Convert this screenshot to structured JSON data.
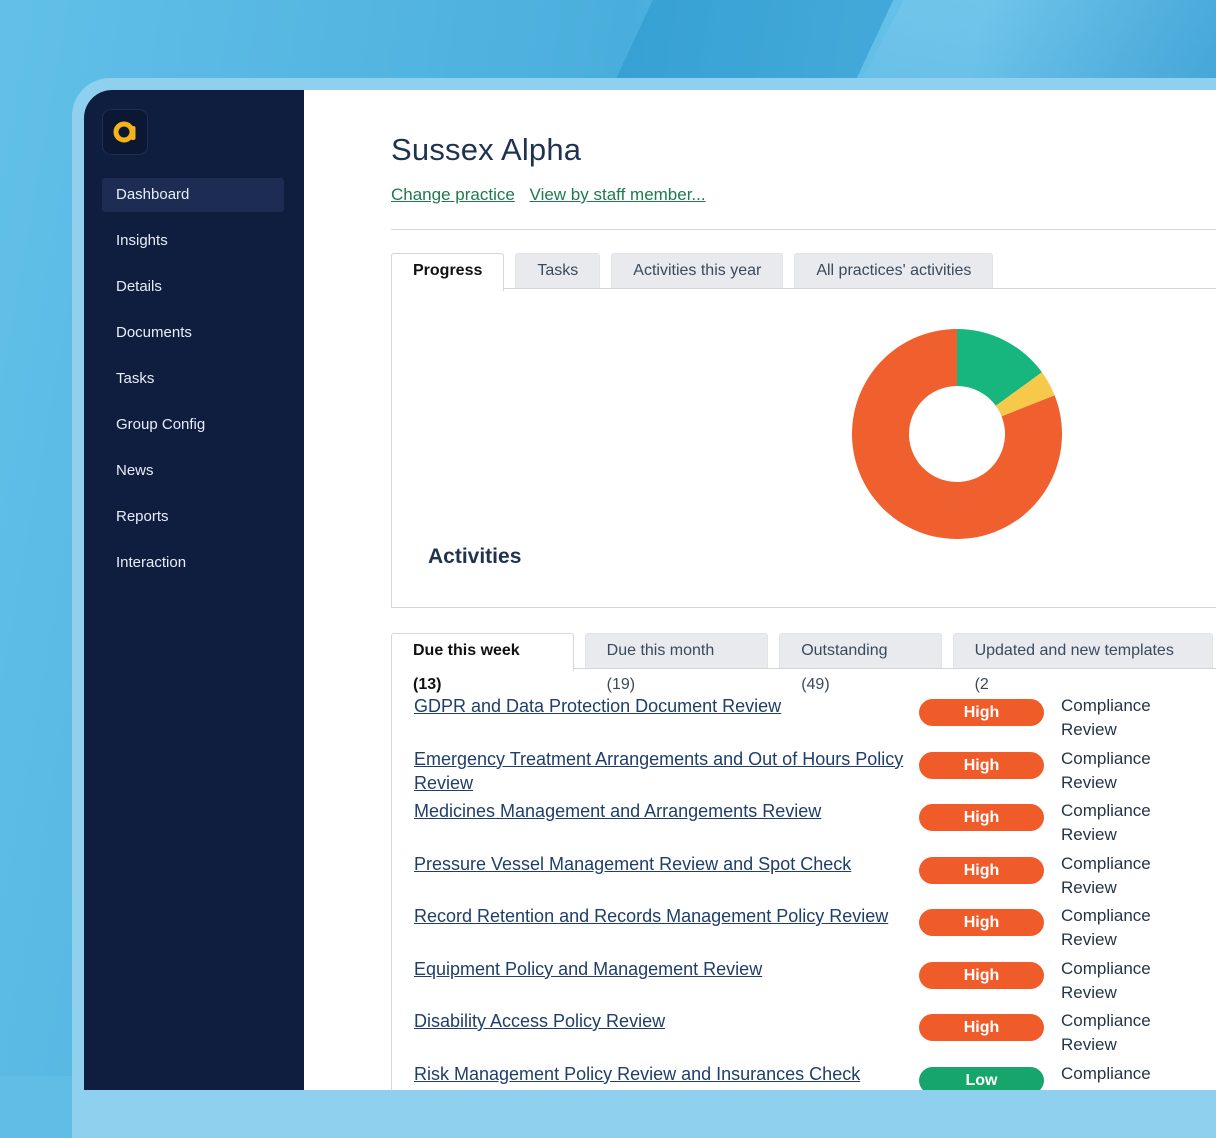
{
  "sidebar": {
    "items": [
      {
        "label": "Dashboard",
        "active": true
      },
      {
        "label": "Insights"
      },
      {
        "label": "Details"
      },
      {
        "label": "Documents"
      },
      {
        "label": "Tasks"
      },
      {
        "label": "Group Config"
      },
      {
        "label": "News"
      },
      {
        "label": "Reports"
      },
      {
        "label": "Interaction"
      }
    ]
  },
  "header": {
    "title": "Sussex Alpha",
    "change_practice": "Change practice",
    "view_by_staff": "View by staff member..."
  },
  "progress_tabs": [
    "Progress",
    "Tasks",
    "Activities this year",
    "All practices' activities"
  ],
  "activities_label": "Activities",
  "chart_data": {
    "type": "pie",
    "donut": true,
    "slices": [
      {
        "value": 15,
        "color": "#16b67e"
      },
      {
        "value": 4,
        "color": "#f6c94a"
      },
      {
        "value": 81,
        "color": "#f05f2e"
      }
    ]
  },
  "due_tabs": [
    "Due this week (13)",
    "Due this month (19)",
    "Outstanding (49)",
    "Updated and new templates (2"
  ],
  "tasks": [
    {
      "title": "GDPR and Data Protection Document Review",
      "priority": "High",
      "level": "high",
      "type": "Compliance Review"
    },
    {
      "title": "Emergency Treatment Arrangements and Out of Hours Policy Review",
      "priority": "High",
      "level": "high",
      "type": "Compliance Review"
    },
    {
      "title": "Medicines Management and Arrangements Review",
      "priority": "High",
      "level": "high",
      "type": "Compliance Review"
    },
    {
      "title": "Pressure Vessel Management Review and Spot Check",
      "priority": "High",
      "level": "high",
      "type": "Compliance Review"
    },
    {
      "title": "Record Retention and Records Management Policy Review",
      "priority": "High",
      "level": "high",
      "type": "Compliance Review"
    },
    {
      "title": "Equipment Policy and Management Review",
      "priority": "High",
      "level": "high",
      "type": "Compliance Review"
    },
    {
      "title": "Disability Access Policy Review",
      "priority": "High",
      "level": "high",
      "type": "Compliance Review"
    },
    {
      "title": "Risk Management Policy Review and Insurances Check",
      "priority": "Low",
      "level": "low",
      "type": "Compliance Review"
    }
  ],
  "colors": {
    "sidebar": "#0f1d3f",
    "high": "#f05b2a",
    "low": "#16a56b",
    "link_green": "#1f7a4d",
    "link_blue": "#1f3e6a"
  }
}
